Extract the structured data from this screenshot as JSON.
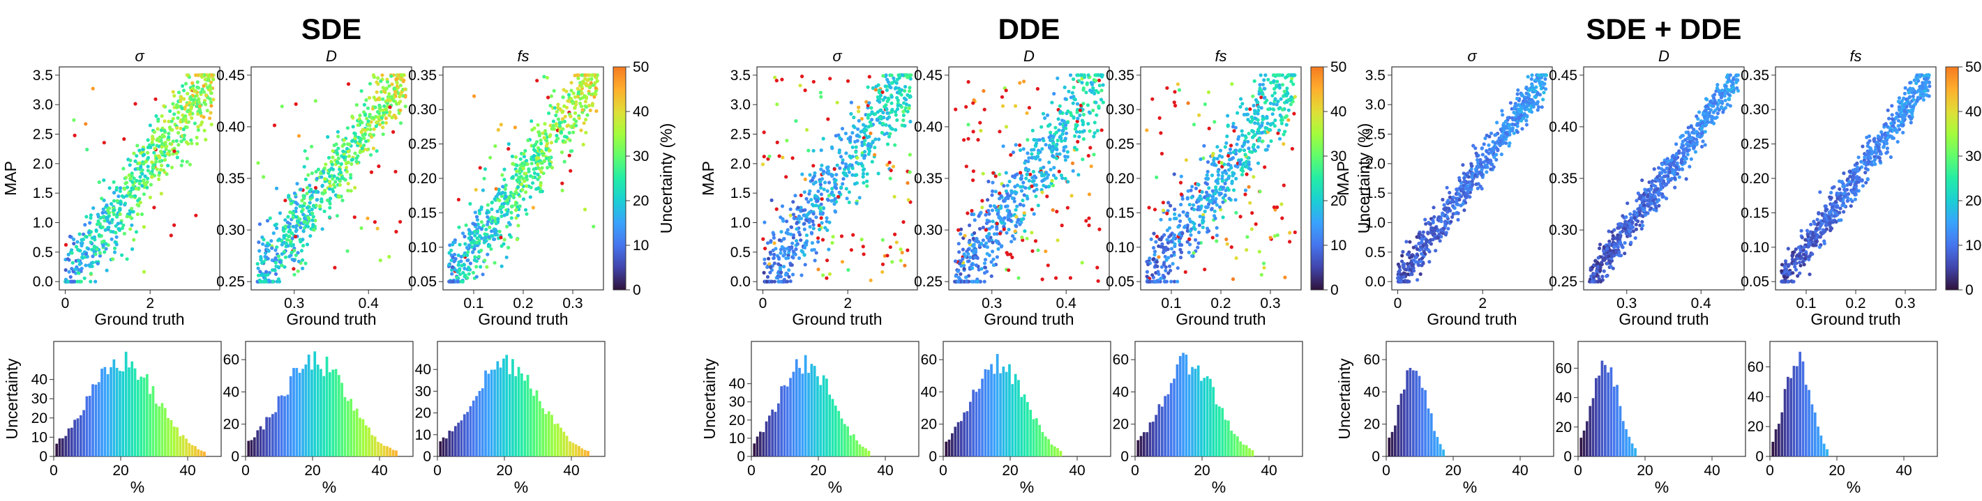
{
  "groups": [
    {
      "title": "SDE",
      "scatter_noise": 0.26,
      "scatter_outliers": 0.04,
      "unc_scale": 0.9,
      "hist_peaks": [
        52,
        62,
        46
      ]
    },
    {
      "title": "DDE",
      "scatter_noise": 0.3,
      "scatter_outliers": 0.17,
      "unc_scale": 0.55,
      "hist_peaks": [
        55,
        62,
        62
      ]
    },
    {
      "title": "SDE + DDE",
      "scatter_noise": 0.13,
      "scatter_outliers": 0.0,
      "unc_scale": 0.35,
      "hist_peaks": [
        62,
        68,
        67
      ]
    }
  ],
  "params": [
    {
      "title": "σ",
      "range": [
        0,
        3.5
      ],
      "ticks": [
        0,
        0.5,
        1.0,
        1.5,
        2.0,
        2.5,
        3.0,
        3.5
      ],
      "tick_labels": [
        "0.0",
        "0.5",
        "1.0",
        "1.5",
        "2.0",
        "2.5",
        "3.0",
        "3.5"
      ],
      "xticks": [
        0,
        2
      ],
      "xtick_labels": [
        "0",
        "2"
      ],
      "ylabel": "MAP"
    },
    {
      "title": "D",
      "range": [
        0.25,
        0.45
      ],
      "ticks": [
        0.25,
        0.3,
        0.35,
        0.4,
        0.45
      ],
      "tick_labels": [
        "0.25",
        "0.30",
        "0.35",
        "0.40",
        "0.45"
      ],
      "xticks": [
        0.3,
        0.4
      ],
      "xtick_labels": [
        "0.3",
        "0.4"
      ],
      "ylabel": ""
    },
    {
      "title": "fs",
      "range": [
        0.05,
        0.35
      ],
      "ticks": [
        0.05,
        0.1,
        0.15,
        0.2,
        0.25,
        0.3,
        0.35
      ],
      "tick_labels": [
        "0.05",
        "0.10",
        "0.15",
        "0.20",
        "0.25",
        "0.30",
        "0.35"
      ],
      "xticks": [
        0.1,
        0.2,
        0.3
      ],
      "xtick_labels": [
        "0.1",
        "0.2",
        "0.3"
      ],
      "ylabel": ""
    }
  ],
  "labels": {
    "xlabel": "Ground truth",
    "colorbar_label": "Uncertainty (%)",
    "hist_ylabel": "Uncertainty",
    "hist_xlabel": "%"
  },
  "colorbar": {
    "ticks": [
      0,
      10,
      20,
      30,
      40,
      50
    ],
    "tick_labels": [
      "0",
      "10",
      "20",
      "30",
      "40",
      "50"
    ]
  },
  "hist": {
    "xticks": [
      0,
      20,
      40
    ],
    "xtick_labels": [
      "0",
      "20",
      "40"
    ],
    "xrange": [
      0,
      50
    ]
  },
  "chart_data": {
    "type": "scatter",
    "title": "",
    "description_of_panels": "",
    "n_points": 700
  }
}
